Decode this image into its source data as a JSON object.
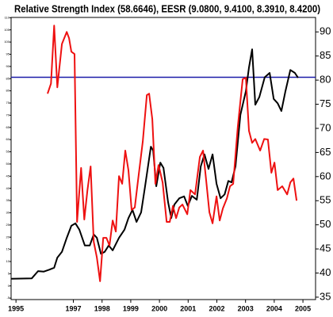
{
  "chart_data": {
    "type": "line",
    "title": "Relative Strength Index (58.6646), EESR (9.0800, 9.4100, 8.3910, 8.4200)",
    "xlim": [
      1994.83,
      2005.44
    ],
    "xticks": [
      1995,
      1997,
      1998,
      1999,
      2000,
      2001,
      2002,
      2003,
      2004,
      2005
    ],
    "ylim": [
      34.5,
      93.0
    ],
    "yticks": [
      35,
      40,
      45,
      50,
      55,
      60,
      65,
      70,
      75,
      80,
      85,
      90
    ],
    "y2lim": [
      -5.6,
      110.1
    ],
    "y2ticks": [
      -5,
      0,
      5,
      10,
      15,
      20,
      25,
      30,
      35,
      40,
      45,
      50,
      55,
      60,
      65,
      70,
      75,
      80,
      85,
      90,
      95,
      100,
      105,
      110
    ],
    "reference_line": {
      "value": 80.6,
      "color": "#1a1aa8"
    },
    "series": [
      {
        "color": "#000000",
        "x": [
          1994.83,
          1995.55,
          1995.77,
          1995.97,
          1996.16,
          1996.33,
          1996.44,
          1996.6,
          1996.77,
          1996.93,
          1997.07,
          1997.21,
          1997.4,
          1997.57,
          1997.71,
          1997.82,
          1997.96,
          1998.09,
          1998.23,
          1998.37,
          1998.59,
          1998.78,
          1998.92,
          1999.06,
          1999.2,
          1999.36,
          1999.5,
          1999.7,
          1999.78,
          1999.89,
          2000.03,
          2000.14,
          2000.3,
          2000.41,
          2000.52,
          2000.69,
          2000.86,
          2000.99,
          2001.13,
          2001.3,
          2001.44,
          2001.57,
          2001.71,
          2001.85,
          2001.99,
          2002.13,
          2002.27,
          2002.4,
          2002.51,
          2002.65,
          2002.82,
          2003.01,
          2003.12,
          2003.23,
          2003.34,
          2003.48,
          2003.67,
          2003.84,
          2003.98,
          2004.12,
          2004.25,
          2004.39,
          2004.56,
          2004.72,
          2004.83
        ],
        "values": [
          38.8,
          38.9,
          40.4,
          40.3,
          40.7,
          41.1,
          43.2,
          44.4,
          47.3,
          49.8,
          50.3,
          49.0,
          45.7,
          45.7,
          48.0,
          47.3,
          44.0,
          44.4,
          45.7,
          44.7,
          47.3,
          49.0,
          51.4,
          53.1,
          50.6,
          52.6,
          58.0,
          66.2,
          65.4,
          58.0,
          62.9,
          61.8,
          54.7,
          51.4,
          54.2,
          55.5,
          55.9,
          53.9,
          56.0,
          55.2,
          62.1,
          64.6,
          61.6,
          64.6,
          58.5,
          55.5,
          56.3,
          59.1,
          58.8,
          62.1,
          72.8,
          77.7,
          82.6,
          86.4,
          74.9,
          76.5,
          80.6,
          81.5,
          76.1,
          75.2,
          73.6,
          77.7,
          82.1,
          81.5,
          80.5
        ]
      },
      {
        "color": "#ee1111",
        "x": [
          1996.1,
          1996.22,
          1996.33,
          1996.44,
          1996.6,
          1996.77,
          1996.85,
          1996.93,
          1997.04,
          1997.13,
          1997.27,
          1997.38,
          1997.49,
          1997.6,
          1997.71,
          1997.82,
          1997.93,
          1998.04,
          1998.15,
          1998.26,
          1998.37,
          1998.48,
          1998.59,
          1998.7,
          1998.81,
          1998.92,
          1999.03,
          1999.14,
          1999.25,
          1999.42,
          1999.56,
          1999.64,
          1999.75,
          1999.86,
          1999.97,
          2000.11,
          2000.25,
          2000.36,
          2000.47,
          2000.58,
          2000.69,
          2000.8,
          2000.97,
          2001.08,
          2001.24,
          2001.41,
          2001.52,
          2001.63,
          2001.74,
          2001.85,
          2001.99,
          2002.1,
          2002.21,
          2002.35,
          2002.46,
          2002.57,
          2002.73,
          2002.9,
          2003.01,
          2003.12,
          2003.23,
          2003.34,
          2003.51,
          2003.65,
          2003.78,
          2003.9,
          2004.01,
          2004.12,
          2004.28,
          2004.45,
          2004.56,
          2004.67,
          2004.78
        ],
        "values": [
          77.2,
          79.3,
          91.3,
          78.5,
          87.5,
          90.0,
          88.7,
          85.9,
          85.4,
          50.6,
          61.8,
          51.1,
          57.2,
          62.1,
          46.5,
          43.2,
          38.3,
          47.3,
          47.3,
          45.7,
          50.9,
          48.6,
          60.1,
          58.5,
          65.4,
          61.3,
          53.1,
          53.6,
          59.1,
          67.3,
          76.9,
          77.2,
          71.9,
          58.5,
          62.4,
          58.8,
          50.6,
          50.6,
          53.9,
          51.4,
          53.6,
          54.2,
          52.2,
          57.2,
          56.3,
          64.1,
          65.4,
          59.1,
          52.6,
          50.3,
          55.9,
          50.9,
          53.4,
          55.5,
          58.0,
          58.5,
          70.3,
          80.2,
          80.5,
          69.5,
          67.0,
          67.8,
          65.4,
          67.8,
          67.7,
          60.8,
          62.9,
          57.2,
          58.0,
          56.3,
          58.8,
          59.6,
          55.0
        ]
      }
    ]
  }
}
